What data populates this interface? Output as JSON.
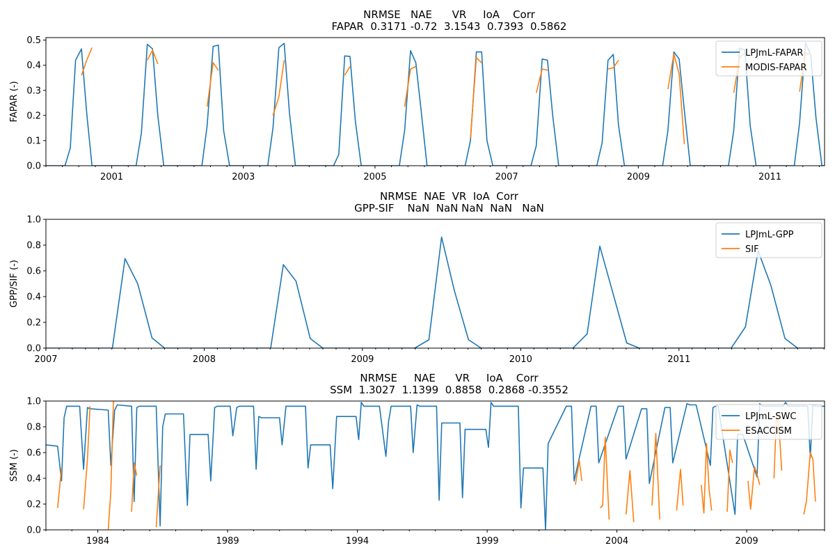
{
  "chart_data": [
    {
      "type": "line",
      "title": "NRMSE   NAE      VR     IoA    Corr\nFAPAR  0.3171 -0.72  3.1543  0.7393  0.5862",
      "xlabel": "",
      "ylabel": "FAPAR (-)",
      "xlim": [
        2000.0,
        2011.83
      ],
      "ylim": [
        0.0,
        0.51
      ],
      "xticks": [
        2001,
        2003,
        2005,
        2007,
        2009,
        2011
      ],
      "yticks": [
        0.0,
        0.1,
        0.2,
        0.3,
        0.4,
        0.5
      ],
      "grid": false,
      "legend": "upper right",
      "series": [
        {
          "name": "LPJmL-FAPAR",
          "color": "#1f77b4",
          "x": [
            2000.0,
            2000.29,
            2000.37,
            2000.45,
            2000.54,
            2000.62,
            2000.7,
            2000.79,
            2001.37,
            2001.45,
            2001.54,
            2001.62,
            2001.7,
            2001.79,
            2002.37,
            2002.45,
            2002.54,
            2002.62,
            2002.7,
            2002.79,
            2003.37,
            2003.45,
            2003.54,
            2003.62,
            2003.7,
            2003.79,
            2004.37,
            2004.45,
            2004.54,
            2004.62,
            2004.7,
            2004.79,
            2005.37,
            2005.45,
            2005.54,
            2005.62,
            2005.7,
            2005.79,
            2006.37,
            2006.45,
            2006.54,
            2006.62,
            2006.7,
            2006.79,
            2007.37,
            2007.45,
            2007.54,
            2007.62,
            2007.7,
            2007.79,
            2008.37,
            2008.45,
            2008.54,
            2008.62,
            2008.7,
            2008.79,
            2009.37,
            2009.45,
            2009.54,
            2009.62,
            2009.7,
            2009.79,
            2010.37,
            2010.45,
            2010.54,
            2010.62,
            2010.7,
            2010.79,
            2011.37,
            2011.45,
            2011.54,
            2011.62,
            2011.7,
            2011.79,
            2011.83
          ],
          "y": [
            0.0,
            0.0,
            0.07,
            0.42,
            0.465,
            0.21,
            0.0,
            0.0,
            0.0,
            0.13,
            0.483,
            0.465,
            0.2,
            0.0,
            0.0,
            0.16,
            0.475,
            0.48,
            0.14,
            0.0,
            0.0,
            0.15,
            0.47,
            0.487,
            0.21,
            0.0,
            0.0,
            0.045,
            0.437,
            0.435,
            0.18,
            0.0,
            0.0,
            0.14,
            0.458,
            0.41,
            0.22,
            0.0,
            0.0,
            0.1,
            0.453,
            0.453,
            0.1,
            0.0,
            0.0,
            0.08,
            0.425,
            0.42,
            0.2,
            0.0,
            0.0,
            0.09,
            0.42,
            0.443,
            0.16,
            0.0,
            0.0,
            0.14,
            0.453,
            0.425,
            0.22,
            0.0,
            0.0,
            0.14,
            0.468,
            0.46,
            0.16,
            0.0,
            0.0,
            0.17,
            0.49,
            0.44,
            0.19,
            0.0,
            0.0
          ]
        },
        {
          "name": "MODIS-FAPAR",
          "color": "#ff7f0e",
          "segments": [
            {
              "x": [
                2000.54,
                2000.62,
                2000.7
              ],
              "y": [
                0.36,
                0.42,
                0.47
              ]
            },
            {
              "x": [
                2001.54,
                2001.62,
                2001.7
              ],
              "y": [
                0.42,
                0.46,
                0.405
              ]
            },
            {
              "x": [
                2002.45,
                2002.54,
                2002.62
              ],
              "y": [
                0.235,
                0.41,
                0.38
              ]
            },
            {
              "x": [
                2003.45,
                2003.54,
                2003.62
              ],
              "y": [
                0.2,
                0.275,
                0.42
              ]
            },
            {
              "x": [
                2004.54,
                2004.62
              ],
              "y": [
                0.36,
                0.395
              ]
            },
            {
              "x": [
                2005.45,
                2005.54,
                2005.62
              ],
              "y": [
                0.235,
                0.385,
                0.395
              ]
            },
            {
              "x": [
                2006.45,
                2006.54,
                2006.62
              ],
              "y": [
                0.11,
                0.43,
                0.41
              ]
            },
            {
              "x": [
                2007.45,
                2007.54,
                2007.62
              ],
              "y": [
                0.29,
                0.385,
                0.38
              ]
            },
            {
              "x": [
                2008.54,
                2008.62,
                2008.7
              ],
              "y": [
                0.385,
                0.39,
                0.42
              ]
            },
            {
              "x": [
                2009.45,
                2009.54,
                2009.62,
                2009.7
              ],
              "y": [
                0.305,
                0.445,
                0.365,
                0.085
              ]
            },
            {
              "x": [
                2010.45,
                2010.54,
                2010.62
              ],
              "y": [
                0.29,
                0.43,
                0.45
              ]
            },
            {
              "x": [
                2011.45,
                2011.54,
                2011.62
              ],
              "y": [
                0.295,
                0.45,
                0.44
              ]
            }
          ]
        }
      ]
    },
    {
      "type": "line",
      "title": "NRMSE  NAE  VR  IoA  Corr\nGPP-SIF    NaN  NaN NaN  NaN   NaN",
      "xlabel": "",
      "ylabel": "GPP/SIF (-)",
      "xlim": [
        2007.0,
        2011.92
      ],
      "ylim": [
        0.0,
        1.0
      ],
      "xticks": [
        2007,
        2008,
        2009,
        2010,
        2011
      ],
      "yticks": [
        0.0,
        0.2,
        0.4,
        0.6,
        0.8,
        1.0
      ],
      "grid": false,
      "legend": "upper right",
      "series": [
        {
          "name": "LPJmL-GPP",
          "color": "#1f77b4",
          "x": [
            2007.0,
            2007.42,
            2007.5,
            2007.58,
            2007.67,
            2007.75,
            2008.42,
            2008.5,
            2008.58,
            2008.67,
            2008.75,
            2009.33,
            2009.42,
            2009.5,
            2009.58,
            2009.67,
            2009.75,
            2010.33,
            2010.42,
            2010.5,
            2010.58,
            2010.67,
            2010.75,
            2011.33,
            2011.42,
            2011.5,
            2011.58,
            2011.67,
            2011.75,
            2011.92
          ],
          "y": [
            0.0,
            0.0,
            0.695,
            0.5,
            0.08,
            0.0,
            0.0,
            0.648,
            0.52,
            0.075,
            0.0,
            0.0,
            0.065,
            0.862,
            0.45,
            0.065,
            0.0,
            0.0,
            0.11,
            0.792,
            0.44,
            0.04,
            0.0,
            0.0,
            0.165,
            0.755,
            0.49,
            0.075,
            0.0,
            0.0
          ]
        },
        {
          "name": "SIF",
          "color": "#ff7f0e",
          "x": [],
          "y": []
        }
      ]
    },
    {
      "type": "line",
      "title": "NRMSE     NAE      VR     IoA    Corr\nSSM  1.3027  1.1399  0.8858  0.2868 -0.3552",
      "xlabel": "",
      "ylabel": "SSM (-)",
      "xlim": [
        1982.0,
        2012.0
      ],
      "ylim": [
        0.0,
        1.0
      ],
      "xticks": [
        1984,
        1989,
        1994,
        1999,
        2004,
        2009
      ],
      "yticks": [
        0.0,
        0.2,
        0.4,
        0.6,
        0.8,
        1.0
      ],
      "grid": false,
      "legend": "upper right",
      "series": [
        {
          "name": "LPJmL-SWC",
          "color": "#1f77b4",
          "x": [
            1982.0,
            1982.45,
            1982.6,
            1982.7,
            1982.8,
            1983.3,
            1983.45,
            1983.6,
            1983.7,
            1984.4,
            1984.5,
            1984.65,
            1984.75,
            1985.3,
            1985.4,
            1985.5,
            1985.6,
            1986.25,
            1986.4,
            1986.5,
            1986.6,
            1987.3,
            1987.45,
            1987.55,
            1987.65,
            1988.25,
            1988.35,
            1988.5,
            1988.6,
            1989.1,
            1989.2,
            1989.35,
            1989.45,
            1990.0,
            1990.1,
            1990.2,
            1990.3,
            1991.0,
            1991.1,
            1991.25,
            1991.35,
            1992.0,
            1992.1,
            1992.2,
            1992.3,
            1992.95,
            1993.05,
            1993.2,
            1993.3,
            1993.95,
            1994.05,
            1994.15,
            1994.25,
            1994.85,
            1995.1,
            1995.2,
            1995.3,
            1995.45,
            1996.05,
            1996.15,
            1996.3,
            1996.4,
            1996.65,
            1997.05,
            1997.15,
            1997.25,
            1997.4,
            1997.95,
            1998.05,
            1998.15,
            1998.25,
            1998.95,
            1999.05,
            1999.15,
            1999.25,
            2000.1,
            2000.2,
            2000.3,
            2000.4,
            2001.05,
            2001.15,
            2001.25,
            2001.35,
            2002.05,
            2002.15,
            2002.25,
            2002.35,
            2003.0,
            2003.1,
            2003.2,
            2003.3,
            2004.05,
            2004.15,
            2004.25,
            2004.35,
            2004.95,
            2005.05,
            2005.15,
            2005.25,
            2005.85,
            2005.95,
            2006.05,
            2006.15,
            2006.7,
            2006.8,
            2006.95,
            2007.05,
            2007.6,
            2007.7,
            2007.8,
            2007.9,
            2008.55,
            2008.65,
            2008.75,
            2008.85,
            2009.4,
            2009.5,
            2009.6,
            2009.7,
            2010.4,
            2010.5,
            2010.6,
            2010.7,
            2011.35,
            2011.45,
            2011.55,
            2011.65,
            2012.0
          ],
          "y": [
            0.66,
            0.65,
            0.38,
            0.87,
            0.96,
            0.96,
            0.47,
            0.95,
            0.94,
            0.93,
            0.5,
            0.93,
            0.97,
            0.96,
            0.22,
            0.95,
            0.96,
            0.96,
            0.03,
            0.8,
            0.9,
            0.9,
            0.19,
            0.74,
            0.74,
            0.74,
            0.38,
            0.95,
            0.96,
            0.96,
            0.73,
            0.95,
            0.96,
            0.96,
            0.47,
            0.88,
            0.87,
            0.87,
            0.66,
            0.96,
            0.96,
            0.96,
            0.48,
            0.66,
            0.66,
            0.66,
            0.32,
            0.88,
            0.88,
            0.88,
            0.7,
            0.99,
            0.96,
            0.96,
            0.57,
            0.84,
            0.96,
            0.96,
            0.96,
            0.6,
            0.97,
            0.96,
            0.96,
            0.96,
            0.23,
            0.83,
            0.83,
            0.83,
            0.25,
            0.78,
            0.78,
            0.78,
            0.64,
            0.99,
            0.96,
            0.96,
            0.96,
            0.17,
            0.48,
            0.48,
            0.48,
            0.0,
            0.67,
            0.96,
            0.96,
            0.96,
            0.38,
            0.96,
            0.96,
            0.96,
            0.52,
            0.96,
            0.96,
            0.96,
            0.55,
            0.94,
            0.94,
            0.94,
            0.36,
            0.95,
            0.95,
            0.95,
            0.52,
            0.98,
            0.97,
            0.97,
            0.97,
            0.5,
            0.95,
            0.96,
            0.96,
            0.12,
            0.74,
            0.74,
            0.74,
            0.41,
            0.98,
            0.96,
            0.96,
            0.96,
            0.99,
            0.96,
            0.96,
            0.96,
            0.56,
            0.97,
            0.96,
            0.96
          ]
        },
        {
          "name": "ESACCISM",
          "color": "#ff7f0e",
          "segments": [
            {
              "x": [
                1982.45,
                1982.6
              ],
              "y": [
                0.17,
                0.48
              ]
            },
            {
              "x": [
                1983.45,
                1983.6,
                1983.7
              ],
              "y": [
                0.16,
                0.55,
                0.96
              ]
            },
            {
              "x": [
                1984.4,
                1984.5,
                1984.6
              ],
              "y": [
                0.0,
                0.3,
                1.0
              ]
            },
            {
              "x": [
                1985.3,
                1985.4,
                1985.5
              ],
              "y": [
                0.14,
                0.52,
                0.42
              ]
            },
            {
              "x": [
                1986.25,
                1986.4
              ],
              "y": [
                0.02,
                0.5
              ]
            },
            {
              "x": [
                2002.4,
                2002.55,
                2002.65
              ],
              "y": [
                0.35,
                0.54,
                0.38
              ]
            },
            {
              "x": [
                2003.35,
                2003.45,
                2003.55,
                2003.7
              ],
              "y": [
                0.17,
                0.19,
                0.72,
                0.08
              ]
            },
            {
              "x": [
                2004.35,
                2004.5,
                2004.65
              ],
              "y": [
                0.12,
                0.46,
                0.06
              ]
            },
            {
              "x": [
                2005.35,
                2005.5,
                2005.65
              ],
              "y": [
                0.19,
                0.75,
                0.08
              ]
            },
            {
              "x": [
                2006.3,
                2006.45,
                2006.55
              ],
              "y": [
                0.15,
                0.47,
                0.19
              ]
            },
            {
              "x": [
                2007.25,
                2007.35,
                2007.45,
                2007.55,
                2007.65
              ],
              "y": [
                0.35,
                0.13,
                0.67,
                0.32,
                0.15
              ]
            },
            {
              "x": [
                2008.25,
                2008.35,
                2008.45
              ],
              "y": [
                0.14,
                0.62,
                0.52
              ]
            },
            {
              "x": [
                2009.05,
                2009.15,
                2009.3,
                2009.4,
                2009.5
              ],
              "y": [
                0.38,
                0.16,
                0.49,
                0.43,
                0.35
              ]
            },
            {
              "x": [
                2010.05,
                2010.15,
                2010.25,
                2010.35
              ],
              "y": [
                0.4,
                0.9,
                0.78,
                0.46
              ]
            },
            {
              "x": [
                2011.2,
                2011.3,
                2011.45,
                2011.55,
                2011.65
              ],
              "y": [
                0.12,
                0.22,
                0.6,
                0.55,
                0.22
              ]
            }
          ]
        }
      ]
    }
  ]
}
